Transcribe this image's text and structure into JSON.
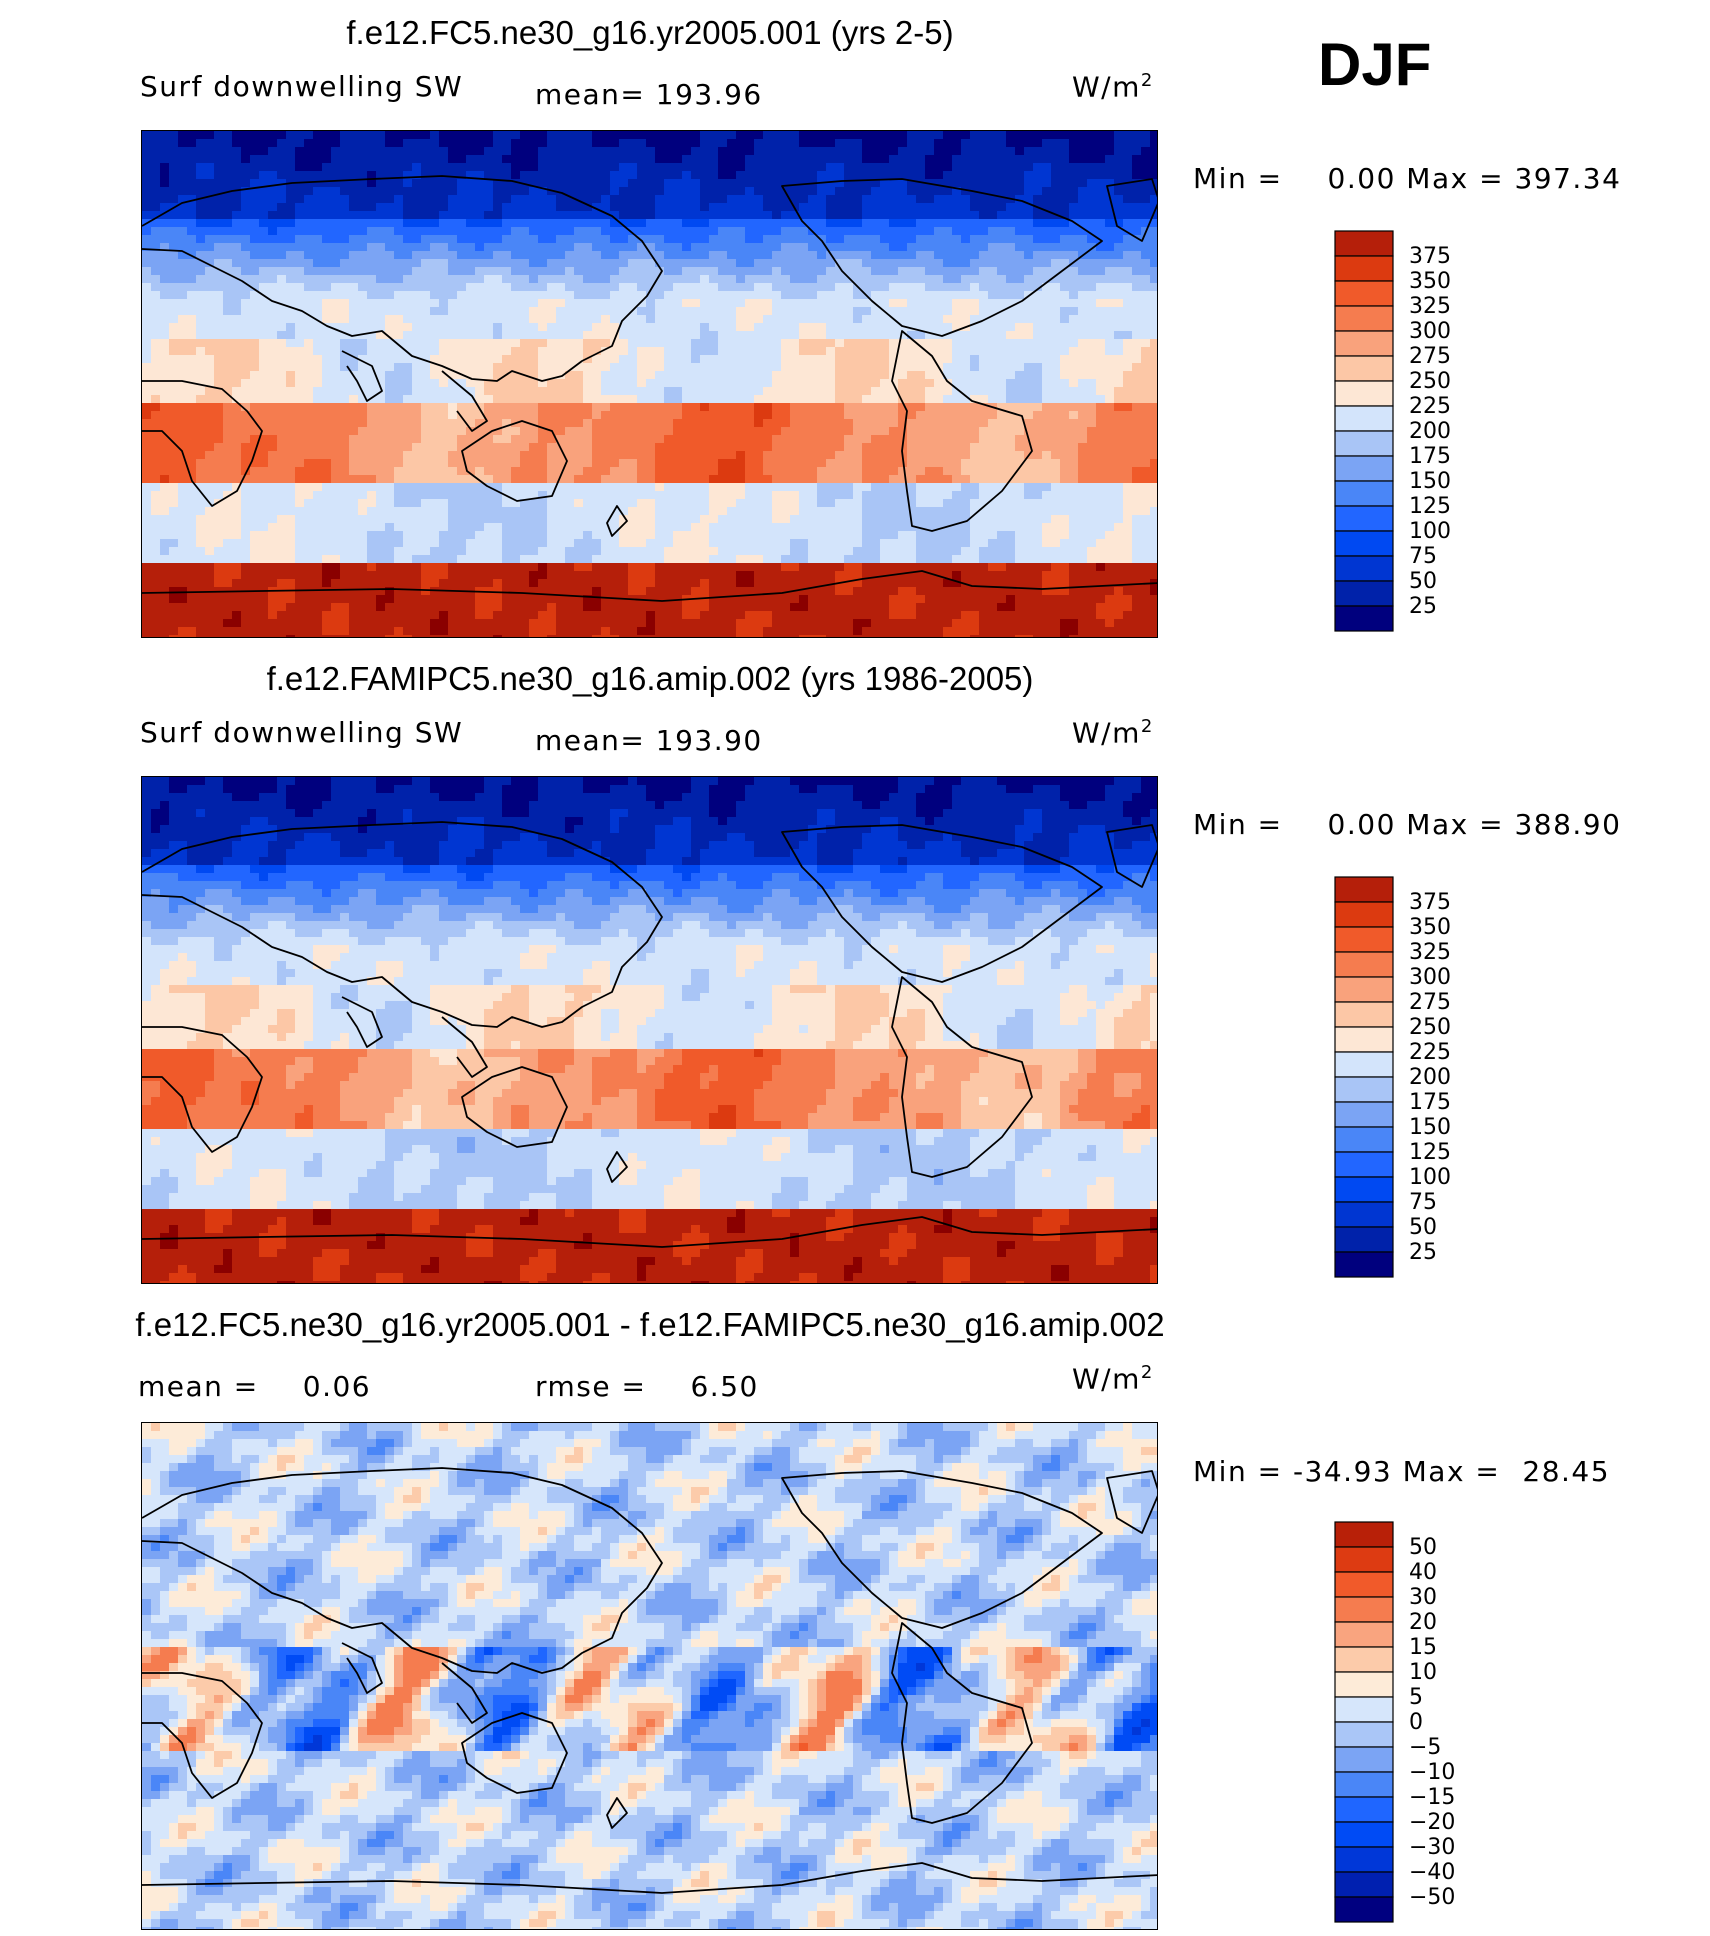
{
  "season": "DJF",
  "colors": {
    "abs_palette": [
      "#00007e",
      "#0022aa",
      "#0036d2",
      "#0049f2",
      "#2266ff",
      "#4a86f7",
      "#7ba4f4",
      "#a9c5f6",
      "#d3e4fb",
      "#fde7d5",
      "#fcc7a6",
      "#f9a27c",
      "#f57c4f",
      "#f05a2a",
      "#dc3a10",
      "#b51f0a",
      "#8a0000"
    ],
    "diff_palette": [
      "#000080",
      "#0020b0",
      "#0037d8",
      "#004bf5",
      "#1f66ff",
      "#4a86f7",
      "#7ba4f4",
      "#aac6f7",
      "#d6e6fb",
      "#fdebd8",
      "#fccbaa",
      "#f9a47f",
      "#f57c4f",
      "#f15a2a",
      "#dd3b12",
      "#b82008",
      "#860000"
    ],
    "coastline": "#000000"
  },
  "chart_data": [
    {
      "type": "heatmap",
      "panel": "test",
      "title": "f.e12.FC5.ne30_g16.yr2005.001 (yrs 2-5)",
      "variable": "Surf downwelling SW",
      "mean_label": "mean= 193.96",
      "units": "W/m",
      "units_sup": "2",
      "min": "0.00",
      "max": "397.34",
      "min_label": "Min =",
      "max_label": "Max =",
      "levels": [
        "375",
        "350",
        "325",
        "300",
        "275",
        "250",
        "225",
        "200",
        "175",
        "150",
        "125",
        "100",
        "75",
        "50",
        "25"
      ],
      "field_values": {
        "arctic": 20,
        "nh_midlat": 95,
        "nh_subtrop": 215,
        "tropics": 230,
        "sh_subtrop": 305,
        "sh_midlat": 210,
        "antarctic": 385
      }
    },
    {
      "type": "heatmap",
      "panel": "control",
      "title": "f.e12.FAMIPC5.ne30_g16.amip.002 (yrs 1986-2005)",
      "variable": "Surf downwelling SW",
      "mean_label": "mean= 193.90",
      "units": "W/m",
      "units_sup": "2",
      "min": "0.00",
      "max": "388.90",
      "min_label": "Min =",
      "max_label": "Max =",
      "levels": [
        "375",
        "350",
        "325",
        "300",
        "275",
        "250",
        "225",
        "200",
        "175",
        "150",
        "125",
        "100",
        "75",
        "50",
        "25"
      ],
      "field_values": {
        "arctic": 20,
        "nh_midlat": 95,
        "nh_subtrop": 215,
        "tropics": 230,
        "sh_subtrop": 300,
        "sh_midlat": 205,
        "antarctic": 385
      }
    },
    {
      "type": "heatmap",
      "panel": "difference",
      "title": "f.e12.FC5.ne30_g16.yr2005.001 - f.e12.FAMIPC5.ne30_g16.amip.002",
      "mean_label": "mean =",
      "mean_value": "0.06",
      "rmse_label": "rmse =",
      "rmse_value": "6.50",
      "units": "W/m",
      "units_sup": "2",
      "min": "-34.93",
      "max": "28.45",
      "min_label": "Min =",
      "max_label": "Max =",
      "levels": [
        "50",
        "40",
        "30",
        "20",
        "15",
        "10",
        "5",
        "0",
        "−5",
        "−10",
        "−15",
        "−20",
        "−30",
        "−40",
        "−50"
      ]
    }
  ]
}
